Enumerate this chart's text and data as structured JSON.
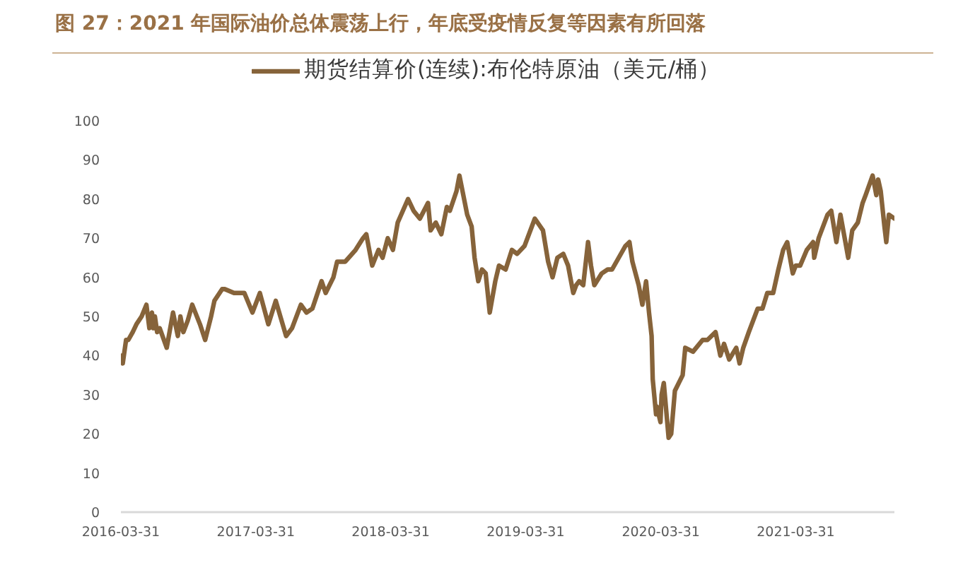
{
  "chart_data": {
    "type": "line",
    "title": "图 27：2021 年国际油价总体震荡上行，年底受疫情反复等因素有所回落",
    "x": [
      "2016-03-31",
      "2016-04-05",
      "2016-04-14",
      "2016-04-20",
      "2016-05-02",
      "2016-05-12",
      "2016-05-26",
      "2016-06-08",
      "2016-06-16",
      "2016-06-23",
      "2016-06-27",
      "2016-07-01",
      "2016-07-07",
      "2016-07-14",
      "2016-08-02",
      "2016-08-19",
      "2016-09-01",
      "2016-09-08",
      "2016-09-16",
      "2016-09-28",
      "2016-10-10",
      "2016-10-31",
      "2016-11-14",
      "2016-11-30",
      "2016-12-09",
      "2016-12-30",
      "2017-01-06",
      "2017-01-31",
      "2017-02-15",
      "2017-02-28",
      "2017-03-22",
      "2017-04-11",
      "2017-05-04",
      "2017-05-24",
      "2017-06-21",
      "2017-07-07",
      "2017-07-31",
      "2017-08-15",
      "2017-08-31",
      "2017-09-25",
      "2017-10-06",
      "2017-10-27",
      "2017-11-06",
      "2017-11-28",
      "2017-12-26",
      "2018-01-15",
      "2018-01-24",
      "2018-02-09",
      "2018-02-26",
      "2018-03-09",
      "2018-03-23",
      "2018-04-06",
      "2018-04-19",
      "2018-05-17",
      "2018-06-01",
      "2018-06-18",
      "2018-07-10",
      "2018-07-17",
      "2018-07-31",
      "2018-08-15",
      "2018-08-30",
      "2018-09-07",
      "2018-09-25",
      "2018-10-03",
      "2018-10-24",
      "2018-11-05",
      "2018-11-13",
      "2018-11-23",
      "2018-12-03",
      "2018-12-13",
      "2018-12-24",
      "2019-01-08",
      "2019-01-18",
      "2019-02-05",
      "2019-02-22",
      "2019-03-08",
      "2019-03-28",
      "2019-04-25",
      "2019-05-17",
      "2019-05-31",
      "2019-06-12",
      "2019-06-25",
      "2019-07-11",
      "2019-07-24",
      "2019-08-07",
      "2019-08-15",
      "2019-08-23",
      "2019-09-03",
      "2019-09-16",
      "2019-09-24",
      "2019-10-03",
      "2019-10-23",
      "2019-11-08",
      "2019-11-20",
      "2019-12-26",
      "2020-01-06",
      "2020-01-14",
      "2020-01-31",
      "2020-02-10",
      "2020-02-20",
      "2020-02-28",
      "2020-03-06",
      "2020-03-09",
      "2020-03-18",
      "2020-03-20",
      "2020-03-30",
      "2020-04-02",
      "2020-04-08",
      "2020-04-21",
      "2020-04-28",
      "2020-05-08",
      "2020-05-29",
      "2020-06-05",
      "2020-06-26",
      "2020-07-22",
      "2020-08-04",
      "2020-08-26",
      "2020-09-08",
      "2020-09-18",
      "2020-10-02",
      "2020-10-21",
      "2020-10-30",
      "2020-11-09",
      "2020-11-24",
      "2020-12-18",
      "2020-12-31",
      "2021-01-13",
      "2021-01-29",
      "2021-02-12",
      "2021-02-25",
      "2021-03-08",
      "2021-03-23",
      "2021-03-31",
      "2021-04-12",
      "2021-04-30",
      "2021-05-17",
      "2021-05-20",
      "2021-06-01",
      "2021-06-25",
      "2021-07-05",
      "2021-07-19",
      "2021-07-30",
      "2021-08-20",
      "2021-08-31",
      "2021-09-15",
      "2021-09-28",
      "2021-10-06",
      "2021-10-25",
      "2021-11-04",
      "2021-11-09",
      "2021-11-16",
      "2021-11-26",
      "2021-12-01",
      "2021-12-08",
      "2021-12-23"
    ],
    "series": [
      {
        "name": "期货结算价(连续):布伦特原油（美元/桶）",
        "color": "#86633a",
        "values": [
          40,
          38,
          44,
          44,
          46,
          48,
          50,
          53,
          47,
          51,
          47,
          50,
          46,
          47,
          42,
          51,
          45,
          50,
          46,
          49,
          53,
          48,
          44,
          50,
          54,
          57,
          57,
          56,
          56,
          56,
          51,
          56,
          48,
          54,
          45,
          47,
          53,
          51,
          52,
          59,
          56,
          60,
          64,
          64,
          67,
          70,
          71,
          63,
          67,
          65,
          70,
          67,
          74,
          80,
          77,
          75,
          79,
          72,
          74,
          71,
          78,
          77,
          82,
          86,
          76,
          73,
          65,
          59,
          62,
          61,
          51,
          59,
          63,
          62,
          67,
          66,
          68,
          75,
          72,
          64,
          60,
          65,
          66,
          63,
          56,
          58,
          59,
          58,
          69,
          63,
          58,
          61,
          62,
          62,
          68,
          69,
          64,
          58,
          53,
          59,
          51,
          45,
          34,
          25,
          27,
          23,
          30,
          33,
          19,
          20,
          31,
          35,
          42,
          41,
          44,
          44,
          46,
          40,
          43,
          39,
          42,
          38,
          42,
          46,
          52,
          52,
          56,
          56,
          62,
          67,
          69,
          61,
          63,
          63,
          67,
          69,
          65,
          70,
          76,
          77,
          69,
          76,
          65,
          72,
          74,
          79,
          81,
          86,
          81,
          85,
          82,
          73,
          69,
          76,
          75
        ]
      }
    ],
    "xlim": [
      "2016-03-31",
      "2021-12-23"
    ],
    "xticks": [
      "2016-03-31",
      "2017-03-31",
      "2018-03-31",
      "2019-03-31",
      "2020-03-31",
      "2021-03-31"
    ],
    "ylim": [
      0,
      100
    ],
    "yticks": [
      0,
      10,
      20,
      30,
      40,
      50,
      60,
      70,
      80,
      90,
      100
    ],
    "legend": "top"
  }
}
